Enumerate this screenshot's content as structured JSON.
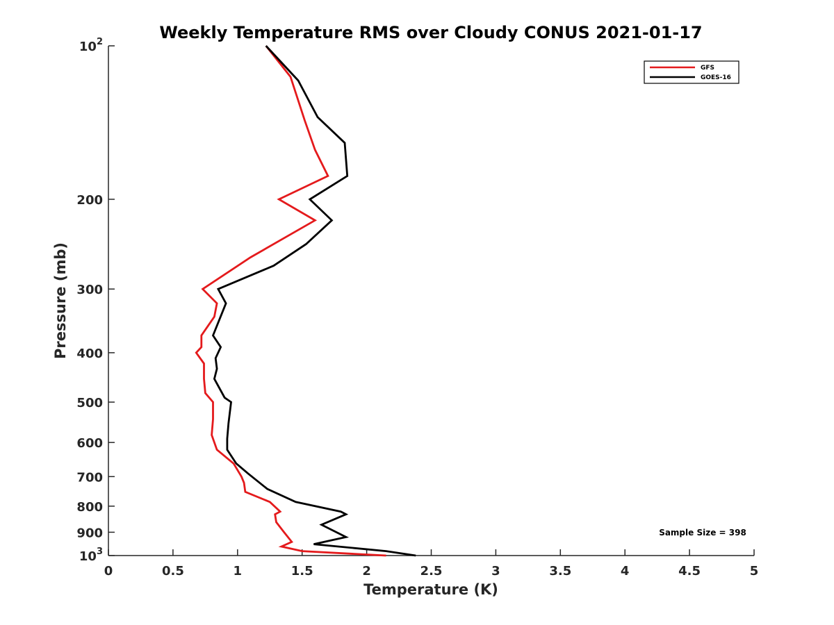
{
  "chart_data": {
    "type": "line",
    "title": "Weekly Temperature RMS over Cloudy CONUS 2021-01-17",
    "xlabel": "Temperature (K)",
    "ylabel": "Pressure (mb)",
    "xlim": [
      0,
      5
    ],
    "ylim": [
      100,
      1000
    ],
    "y_scale": "log",
    "y_reversed": true,
    "grid": false,
    "legend_position": "top-right",
    "x_ticks": [
      {
        "value": 0,
        "label": "0"
      },
      {
        "value": 0.5,
        "label": "0.5"
      },
      {
        "value": 1,
        "label": "1"
      },
      {
        "value": 1.5,
        "label": "1.5"
      },
      {
        "value": 2,
        "label": "2"
      },
      {
        "value": 2.5,
        "label": "2.5"
      },
      {
        "value": 3,
        "label": "3"
      },
      {
        "value": 3.5,
        "label": "3.5"
      },
      {
        "value": 4,
        "label": "4"
      },
      {
        "value": 4.5,
        "label": "4.5"
      },
      {
        "value": 5,
        "label": "5"
      }
    ],
    "y_ticks": [
      {
        "value": 100,
        "label": "10",
        "sup": "2"
      },
      {
        "value": 200,
        "label": "200"
      },
      {
        "value": 300,
        "label": "300"
      },
      {
        "value": 400,
        "label": "400"
      },
      {
        "value": 500,
        "label": "500"
      },
      {
        "value": 600,
        "label": "600"
      },
      {
        "value": 700,
        "label": "700"
      },
      {
        "value": 800,
        "label": "800"
      },
      {
        "value": 900,
        "label": "900"
      },
      {
        "value": 1000,
        "label": "10",
        "sup": "3"
      }
    ],
    "series": [
      {
        "name": "GFS",
        "color": "#e41a1c",
        "points": [
          {
            "x": 1.22,
            "y": 100
          },
          {
            "x": 1.41,
            "y": 115
          },
          {
            "x": 1.52,
            "y": 140
          },
          {
            "x": 1.6,
            "y": 160
          },
          {
            "x": 1.7,
            "y": 180
          },
          {
            "x": 1.32,
            "y": 200
          },
          {
            "x": 1.6,
            "y": 220
          },
          {
            "x": 1.1,
            "y": 260
          },
          {
            "x": 0.73,
            "y": 300
          },
          {
            "x": 0.84,
            "y": 320
          },
          {
            "x": 0.82,
            "y": 340
          },
          {
            "x": 0.72,
            "y": 370
          },
          {
            "x": 0.72,
            "y": 390
          },
          {
            "x": 0.68,
            "y": 400
          },
          {
            "x": 0.74,
            "y": 420
          },
          {
            "x": 0.74,
            "y": 450
          },
          {
            "x": 0.75,
            "y": 480
          },
          {
            "x": 0.81,
            "y": 500
          },
          {
            "x": 0.81,
            "y": 540
          },
          {
            "x": 0.8,
            "y": 580
          },
          {
            "x": 0.84,
            "y": 620
          },
          {
            "x": 0.97,
            "y": 660
          },
          {
            "x": 1.03,
            "y": 700
          },
          {
            "x": 1.05,
            "y": 720
          },
          {
            "x": 1.06,
            "y": 750
          },
          {
            "x": 1.25,
            "y": 785
          },
          {
            "x": 1.33,
            "y": 820
          },
          {
            "x": 1.29,
            "y": 830
          },
          {
            "x": 1.3,
            "y": 860
          },
          {
            "x": 1.36,
            "y": 900
          },
          {
            "x": 1.42,
            "y": 940
          },
          {
            "x": 1.34,
            "y": 960
          },
          {
            "x": 1.5,
            "y": 980
          },
          {
            "x": 2.15,
            "y": 1000
          }
        ]
      },
      {
        "name": "GOES-16",
        "color": "#000000",
        "points": [
          {
            "x": 1.22,
            "y": 100
          },
          {
            "x": 1.47,
            "y": 117
          },
          {
            "x": 1.62,
            "y": 138
          },
          {
            "x": 1.83,
            "y": 155
          },
          {
            "x": 1.85,
            "y": 180
          },
          {
            "x": 1.56,
            "y": 200
          },
          {
            "x": 1.73,
            "y": 220
          },
          {
            "x": 1.53,
            "y": 245
          },
          {
            "x": 1.28,
            "y": 270
          },
          {
            "x": 0.85,
            "y": 300
          },
          {
            "x": 0.91,
            "y": 320
          },
          {
            "x": 0.81,
            "y": 370
          },
          {
            "x": 0.87,
            "y": 390
          },
          {
            "x": 0.83,
            "y": 410
          },
          {
            "x": 0.84,
            "y": 430
          },
          {
            "x": 0.82,
            "y": 450
          },
          {
            "x": 0.9,
            "y": 490
          },
          {
            "x": 0.95,
            "y": 500
          },
          {
            "x": 0.93,
            "y": 550
          },
          {
            "x": 0.92,
            "y": 590
          },
          {
            "x": 0.92,
            "y": 620
          },
          {
            "x": 0.99,
            "y": 660
          },
          {
            "x": 1.08,
            "y": 690
          },
          {
            "x": 1.23,
            "y": 740
          },
          {
            "x": 1.45,
            "y": 785
          },
          {
            "x": 1.8,
            "y": 820
          },
          {
            "x": 1.84,
            "y": 830
          },
          {
            "x": 1.65,
            "y": 870
          },
          {
            "x": 1.84,
            "y": 920
          },
          {
            "x": 1.59,
            "y": 950
          },
          {
            "x": 2.15,
            "y": 980
          },
          {
            "x": 2.38,
            "y": 1000
          }
        ]
      }
    ],
    "annotation": "Sample Size = 398"
  }
}
